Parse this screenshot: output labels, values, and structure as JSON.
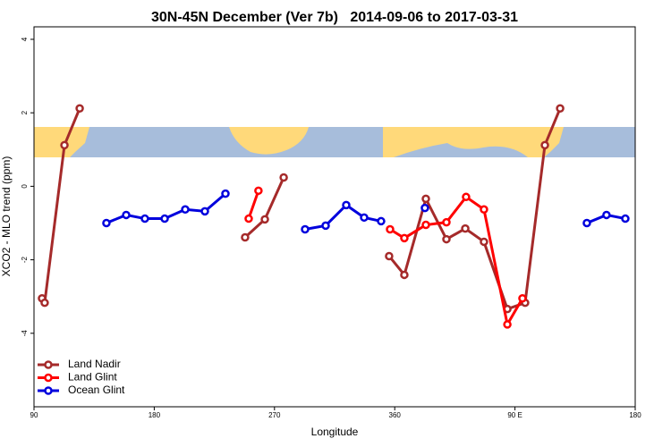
{
  "chart_data": {
    "type": "line",
    "title": "30N-45N December (Ver 7b)   2014-09-06 to 2017-03-31",
    "x_label": "Longitude",
    "y_label": "XCO2 - MLO trend (ppm)",
    "xlim": [
      90,
      540
    ],
    "ylim": [
      -6,
      4.34
    ],
    "xticks": [
      90,
      180,
      270,
      360,
      {
        "value": 450,
        "label": "90 E"
      },
      {
        "value": 540,
        "label": "180"
      }
    ],
    "xtick_labels_override": null,
    "yticks": [
      -4,
      -2,
      0,
      2,
      4
    ],
    "legend": "bottom-left",
    "series": [
      {
        "name": "Land Nadir",
        "color": "#a52a2a",
        "x": [
          96.0,
          98.0,
          112.8,
          124.2,
          null,
          248.0,
          262.8,
          276.9,
          null,
          355.8,
          367.2,
          383.3,
          398.7,
          412.8,
          426.8,
          444.3,
          457.6,
          472.4,
          483.8
        ],
        "values": [
          -3.05,
          -3.17,
          1.12,
          2.12,
          null,
          -1.39,
          -0.9,
          0.24,
          null,
          -1.9,
          -2.41,
          -0.34,
          -1.44,
          -1.15,
          -1.51,
          -3.34,
          -3.17,
          1.12,
          2.12
        ]
      },
      {
        "name": "Land Glint",
        "color": "#ff0000",
        "x": [
          250.7,
          258.0,
          null,
          356.5,
          367.2,
          383.3,
          398.7,
          413.4,
          426.8,
          444.3,
          455.6
        ],
        "values": [
          -0.88,
          -0.12,
          null,
          -1.17,
          -1.41,
          -1.05,
          -0.98,
          -0.29,
          -0.63,
          -3.76,
          -3.05
        ]
      },
      {
        "name": "Ocean Glint",
        "color": "#0000dd",
        "x": [
          144.2,
          159.0,
          173.0,
          187.8,
          203.2,
          217.9,
          233.3,
          null,
          292.9,
          308.3,
          323.7,
          337.1,
          349.8,
          null,
          382.6,
          null,
          503.8,
          518.5,
          532.6
        ],
        "values": [
          -1.0,
          -0.78,
          -0.88,
          -0.88,
          -0.63,
          -0.68,
          -0.2,
          null,
          -1.17,
          -1.07,
          -0.51,
          -0.85,
          -0.95,
          null,
          -0.59,
          null,
          -1.0,
          -0.78,
          -0.88
        ]
      }
    ]
  }
}
